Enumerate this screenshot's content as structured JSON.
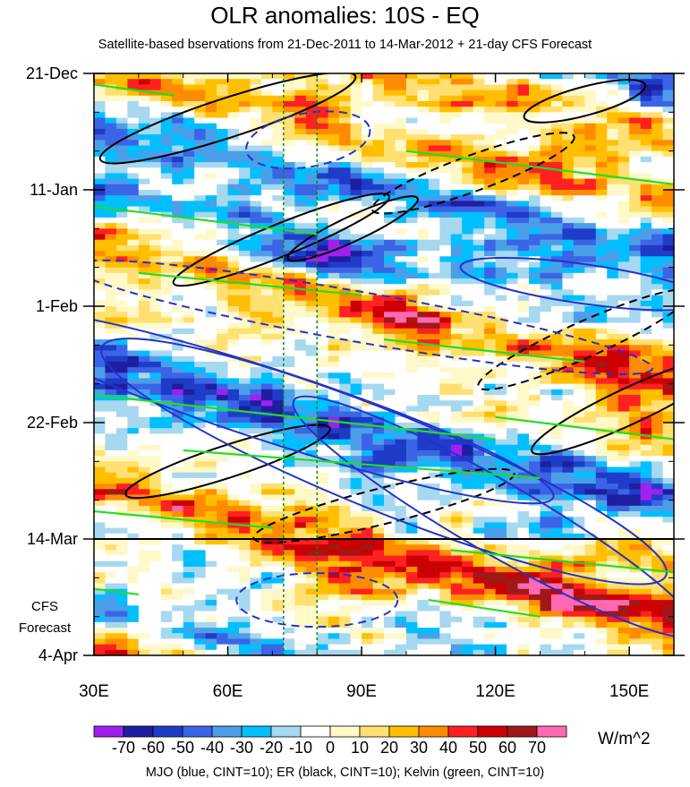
{
  "title": "OLR anomalies: 10S - EQ",
  "subtitle": "Satellite-based bservations from 21-Dec-2011 to 14-Mar-2012 + 21-day CFS Forecast",
  "units": "W/m^2",
  "footer": "MJO (blue, CINT=10); ER (black, CINT=10); Kelvin (green, CINT=10)",
  "forecast_label": [
    "CFS",
    "Forecast"
  ],
  "chart_data": {
    "type": "heatmap",
    "title": "OLR anomalies: 10S - EQ",
    "subtitle": "Satellite-based bservations from 21-Dec-2011 to 14-Mar-2012 + 21-day CFS Forecast",
    "x_axis": {
      "range": [
        "30E",
        "160E"
      ],
      "ticks": [
        "30E",
        "60E",
        "90E",
        "120E",
        "150E"
      ]
    },
    "y_axis": {
      "range": [
        "21-Dec-2011",
        "4-Apr-2012"
      ],
      "ticks": [
        "21-Dec",
        "11-Jan",
        "1-Feb",
        "22-Feb",
        "14-Mar",
        "4-Apr"
      ]
    },
    "observation_end": "14-Mar",
    "reference_lines_lon": [
      72.5,
      80
    ],
    "colorbar": {
      "units": "W/m^2",
      "labels": [
        "-70",
        "-60",
        "-50",
        "-40",
        "-30",
        "-20",
        "-10",
        "0",
        "10",
        "20",
        "30",
        "40",
        "50",
        "60",
        "70"
      ],
      "colors": [
        "#a020f0",
        "#1e1ea0",
        "#1e3cc8",
        "#3c64e6",
        "#4a9fe8",
        "#00bfff",
        "#a6d8f0",
        "#ffffff",
        "#fff8c8",
        "#ffe070",
        "#ffbf00",
        "#ff8c00",
        "#ff2020",
        "#cc0000",
        "#a01818",
        "#ff69b4"
      ]
    },
    "contours": {
      "MJO": {
        "color": "blue",
        "cint": 10
      },
      "ER": {
        "color": "black",
        "cint": 10
      },
      "Kelvin": {
        "color": "green",
        "cint": 10
      }
    }
  }
}
